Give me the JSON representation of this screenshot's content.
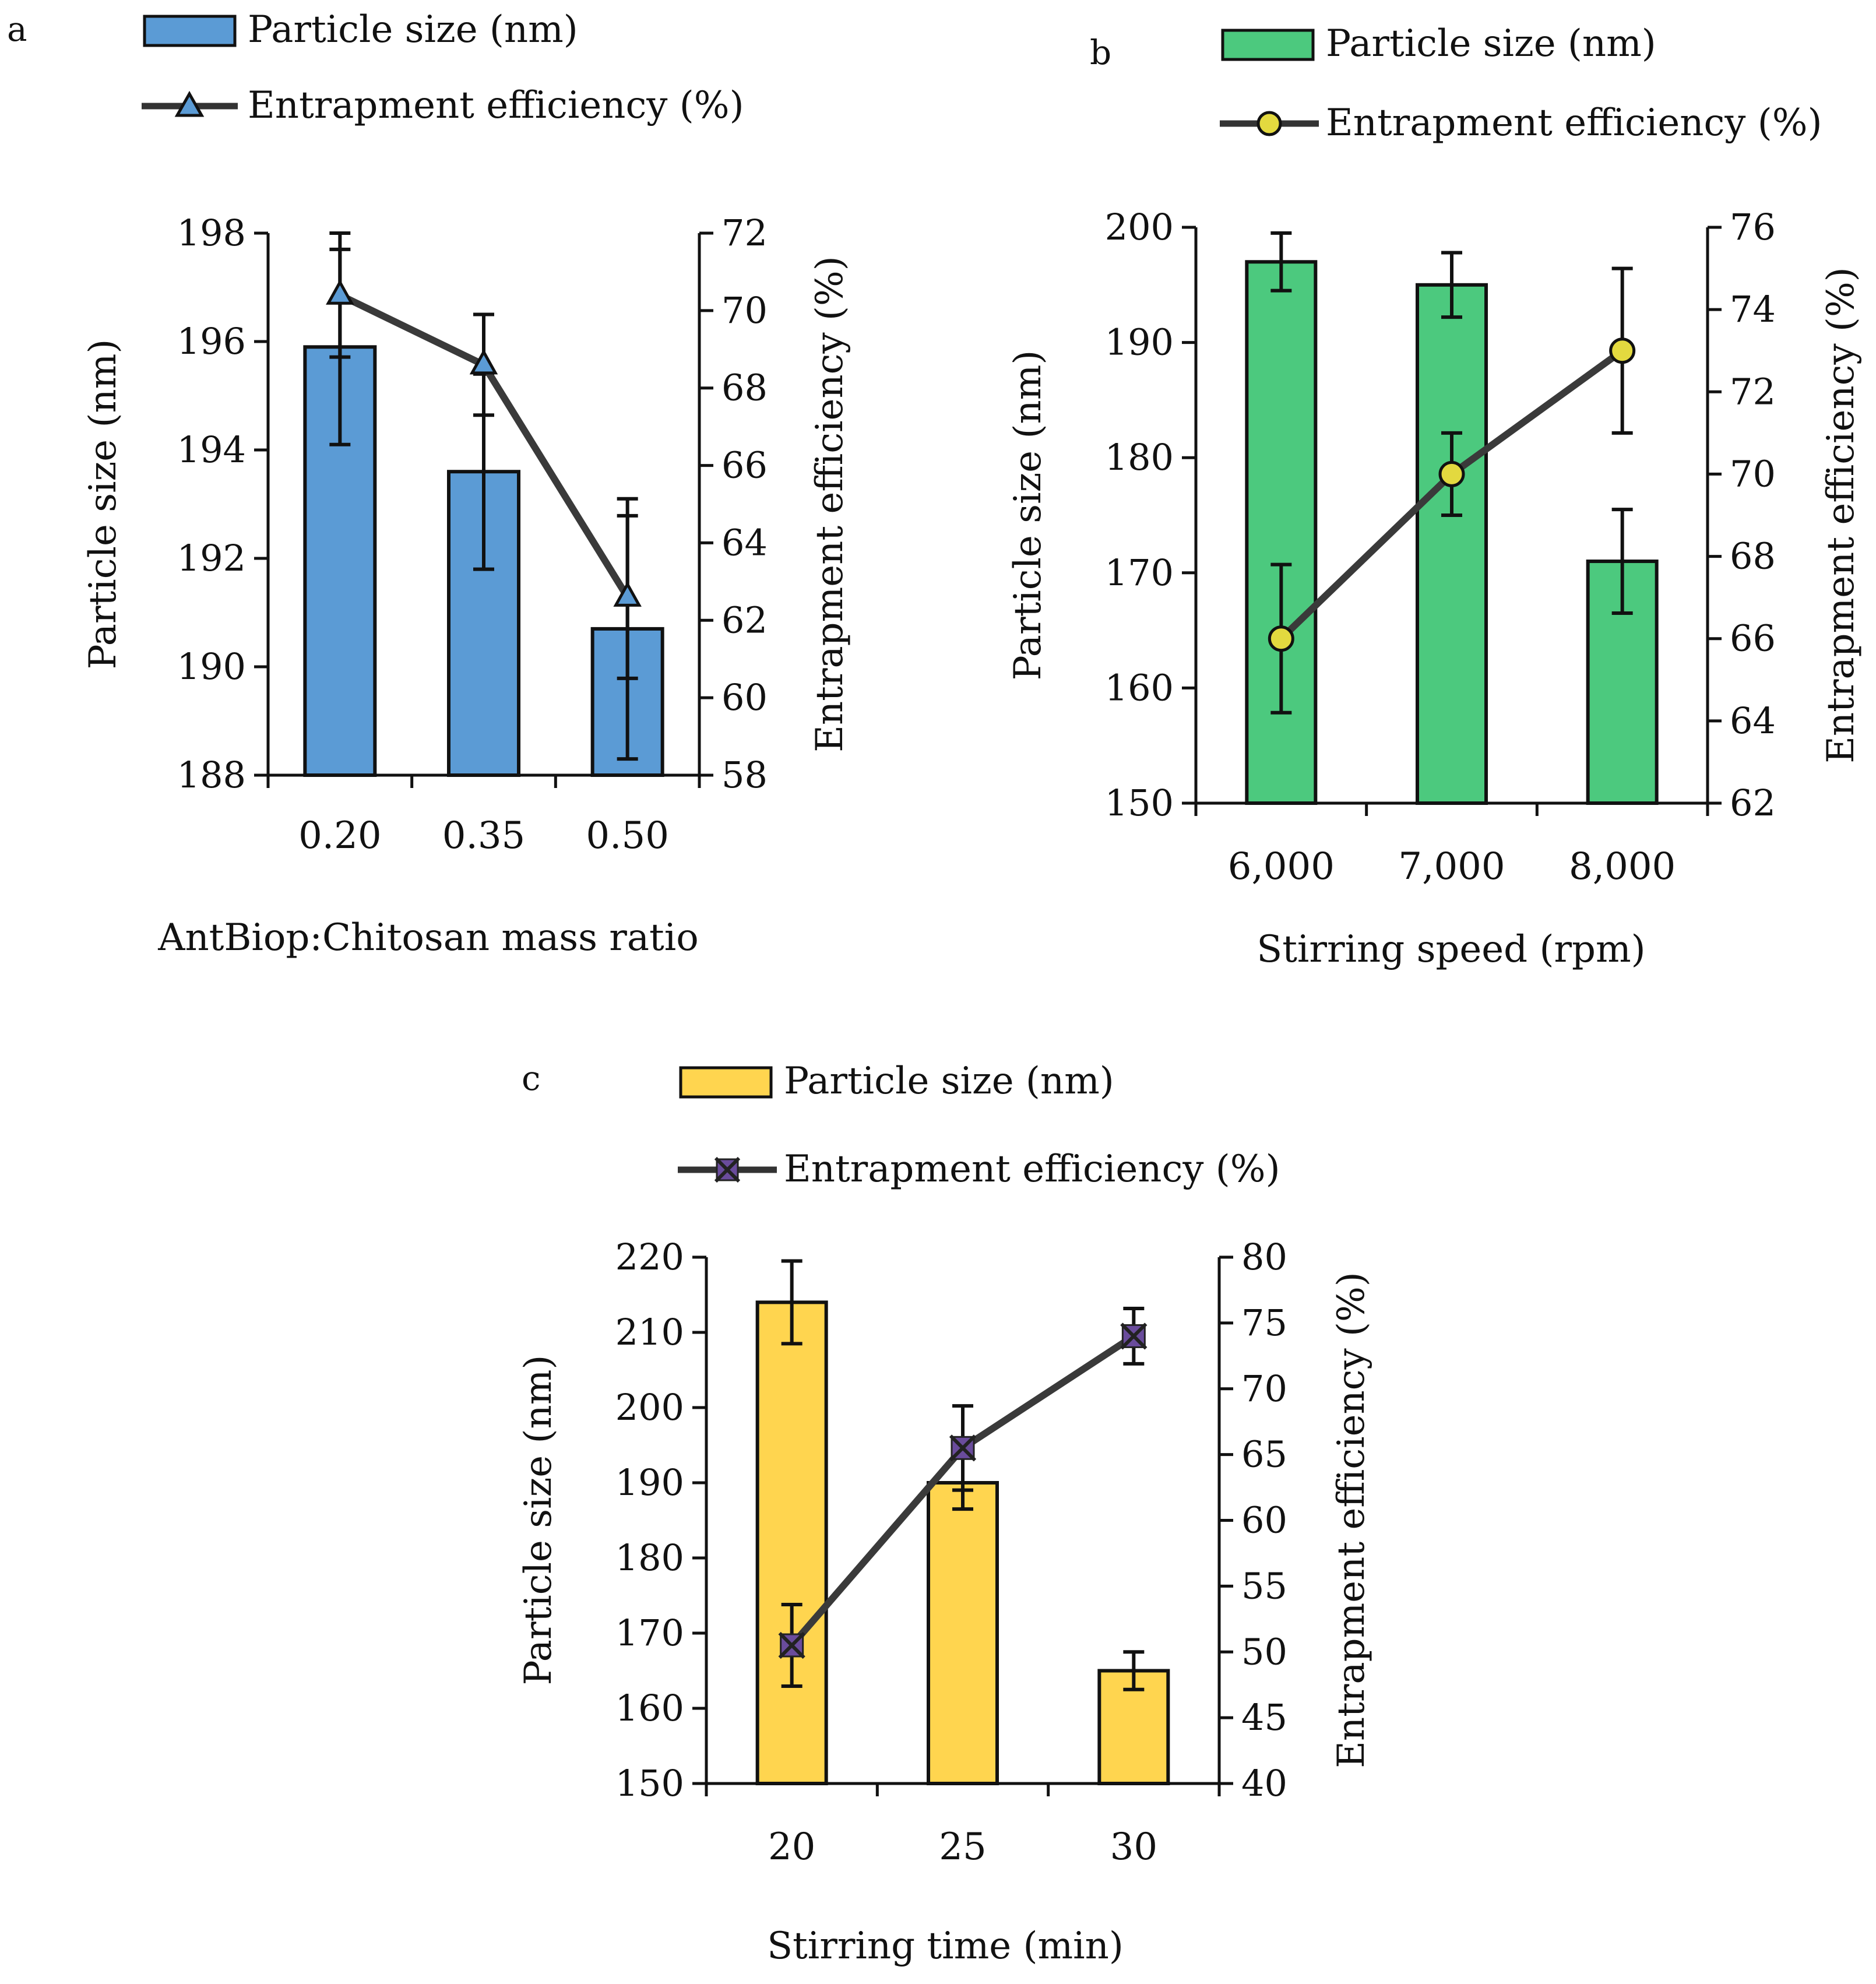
{
  "chart_data": [
    {
      "panel_label": "a",
      "type": "bar",
      "categories": [
        "0.20",
        "0.35",
        "0.50"
      ],
      "xlabel": "AntBiop:Chitosan mass ratio",
      "ylabel": "Particle size (nm)",
      "y2label": "Entrapment efficiency (%)",
      "ylim": [
        188,
        198
      ],
      "yticks": [
        "188",
        "190",
        "192",
        "194",
        "196",
        "198"
      ],
      "y2lim": [
        58,
        72
      ],
      "y2ticks": [
        "58",
        "60",
        "62",
        "64",
        "66",
        "68",
        "70",
        "72"
      ],
      "bar_color": "#5B9BD5",
      "marker": "triangle",
      "marker_color": "#5B9BD5",
      "series": [
        {
          "name": "Particle size (nm)",
          "kind": "bar",
          "axis": "left",
          "values": [
            195.9,
            193.6,
            190.7
          ],
          "errors": [
            1.8,
            1.8,
            2.4
          ]
        },
        {
          "name": "Entrapment efficiency (%)",
          "kind": "line",
          "axis": "right",
          "values": [
            70.4,
            68.6,
            62.6
          ],
          "errors": [
            1.6,
            1.3,
            2.1
          ]
        }
      ]
    },
    {
      "panel_label": "b",
      "type": "bar",
      "categories": [
        "6,000",
        "7,000",
        "8,000"
      ],
      "xlabel": "Stirring speed (rpm)",
      "ylabel": "Particle size (nm)",
      "y2label": "Entrapment efficiency (%)",
      "ylim": [
        150,
        200
      ],
      "yticks": [
        "150",
        "160",
        "170",
        "180",
        "190",
        "200"
      ],
      "y2lim": [
        62,
        76
      ],
      "y2ticks": [
        "62",
        "64",
        "66",
        "68",
        "70",
        "72",
        "74",
        "76"
      ],
      "bar_color": "#4CC97E",
      "marker": "circle",
      "marker_color": "#E3D93F",
      "series": [
        {
          "name": "Particle size (nm)",
          "kind": "bar",
          "axis": "left",
          "values": [
            197,
            195,
            171
          ],
          "errors": [
            2.5,
            2.8,
            4.5
          ]
        },
        {
          "name": "Entrapment efficiency (%)",
          "kind": "line",
          "axis": "right",
          "values": [
            66,
            70,
            73
          ],
          "errors": [
            1.8,
            1.0,
            2.0
          ]
        }
      ]
    },
    {
      "panel_label": "c",
      "type": "bar",
      "categories": [
        "20",
        "25",
        "30"
      ],
      "xlabel": "Stirring time (min)",
      "ylabel": "Particle size (nm)",
      "y2label": "Entrapment efficiency (%)",
      "ylim": [
        150,
        220
      ],
      "yticks": [
        "150",
        "160",
        "170",
        "180",
        "190",
        "200",
        "210",
        "220"
      ],
      "y2lim": [
        40,
        80
      ],
      "y2ticks": [
        "40",
        "45",
        "50",
        "55",
        "60",
        "65",
        "70",
        "75",
        "80"
      ],
      "bar_color": "#FFD54F",
      "marker": "x-square",
      "marker_color": "#6A4C9C",
      "series": [
        {
          "name": "Particle size (nm)",
          "kind": "bar",
          "axis": "left",
          "values": [
            214,
            190,
            165
          ],
          "errors": [
            5.5,
            3.5,
            2.5
          ]
        },
        {
          "name": "Entrapment efficiency (%)",
          "kind": "line",
          "axis": "right",
          "values": [
            50.5,
            65.5,
            74
          ],
          "errors": [
            3.1,
            3.2,
            2.1
          ]
        }
      ]
    }
  ]
}
